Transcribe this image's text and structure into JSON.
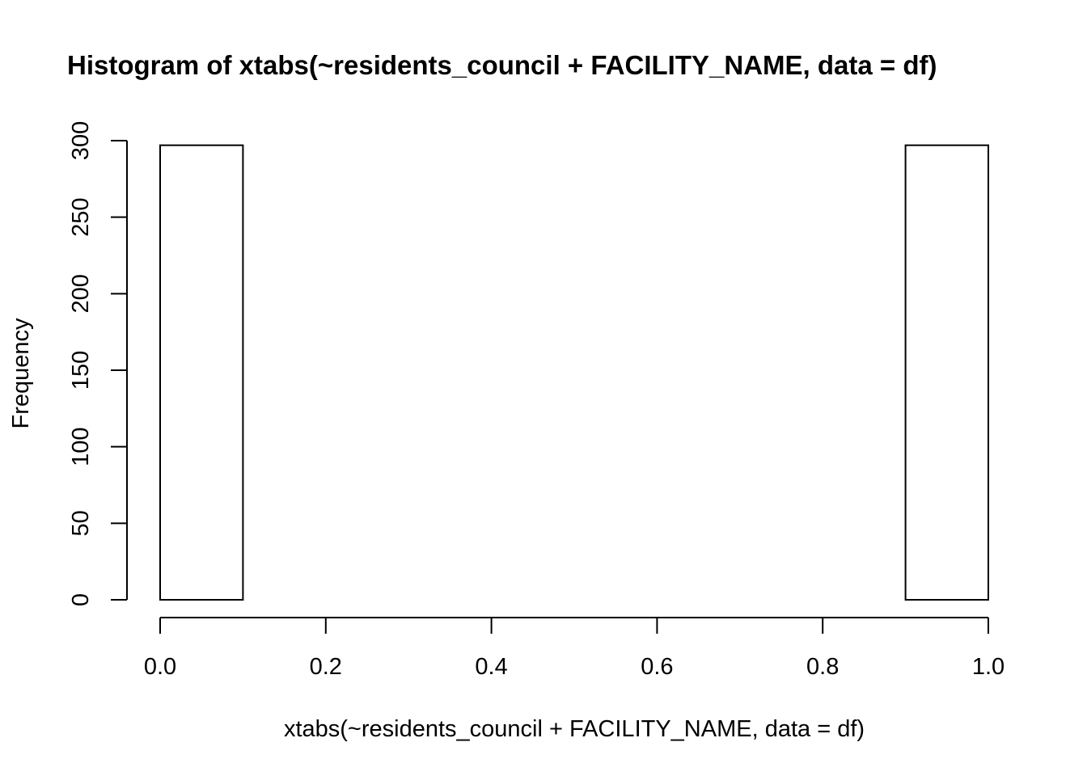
{
  "chart_data": {
    "type": "bar",
    "title": "Histogram of xtabs(~residents_council + FACILITY_NAME, data = df)",
    "xlabel": "xtabs(~residents_council + FACILITY_NAME, data = df)",
    "ylabel": "Frequency",
    "xlim": [
      0,
      1
    ],
    "ylim": [
      0,
      300
    ],
    "bins": [
      {
        "start": 0.0,
        "end": 0.1,
        "count": 297
      },
      {
        "start": 0.1,
        "end": 0.2,
        "count": 0
      },
      {
        "start": 0.2,
        "end": 0.3,
        "count": 0
      },
      {
        "start": 0.3,
        "end": 0.4,
        "count": 0
      },
      {
        "start": 0.4,
        "end": 0.5,
        "count": 0
      },
      {
        "start": 0.5,
        "end": 0.6,
        "count": 0
      },
      {
        "start": 0.6,
        "end": 0.7,
        "count": 0
      },
      {
        "start": 0.7,
        "end": 0.8,
        "count": 0
      },
      {
        "start": 0.8,
        "end": 0.9,
        "count": 0
      },
      {
        "start": 0.9,
        "end": 1.0,
        "count": 297
      }
    ],
    "x_ticks": [
      "0.0",
      "0.2",
      "0.4",
      "0.6",
      "0.8",
      "1.0"
    ],
    "y_ticks": [
      "0",
      "50",
      "100",
      "150",
      "200",
      "250",
      "300"
    ],
    "grid": false
  }
}
